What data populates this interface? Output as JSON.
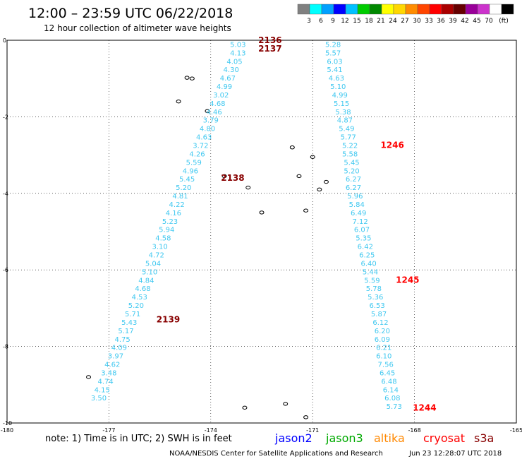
{
  "header": {
    "title": "12:00 – 23:59 UTC 06/22/2018",
    "subtitle": "12 hour collection of altimeter wave heights"
  },
  "legend": {
    "swatches": [
      "#808080",
      "#00ffff",
      "#00a0ff",
      "#0000ff",
      "#00c0ff",
      "#00cc00",
      "#008800",
      "#ffff00",
      "#ffd700",
      "#ff8c00",
      "#ff4500",
      "#ff0000",
      "#aa0000",
      "#660000",
      "#990099",
      "#cc33cc",
      "#ffffff",
      "#000000"
    ],
    "labels": [
      "3",
      "6",
      "9",
      "12",
      "15",
      "18",
      "21",
      "24",
      "27",
      "30",
      "33",
      "36",
      "39",
      "42",
      "45",
      "70",
      "(ft)"
    ]
  },
  "footer": {
    "note": "note: 1) Time is in UTC; 2) SWH is in feet",
    "credit": "NOAA/NESDIS Center for Satellite Applications and Research",
    "timestamp": "Jun 23 12:28:07 UTC 2018"
  },
  "satellites": [
    {
      "name": "jason2",
      "color": "#0000ff"
    },
    {
      "name": "jason3",
      "color": "#00aa00"
    },
    {
      "name": "altika",
      "color": "#ff8800"
    },
    {
      "name": "cryosat",
      "color": "#ff0000"
    },
    {
      "name": "s3a",
      "color": "#880000"
    }
  ],
  "chart_data": {
    "type": "scatter",
    "xlim": [
      -180,
      -165
    ],
    "ylim": [
      -10,
      0
    ],
    "x_ticks": [
      "-180",
      "-177",
      "-174",
      "-171",
      "-168",
      "-165"
    ],
    "y_ticks": [
      "0",
      "-2",
      "-4",
      "-6",
      "-8",
      "-10"
    ],
    "grid": true,
    "tracks": [
      {
        "satellite": "s3a",
        "value_color": "#40c8f0",
        "points": [
          {
            "x": -173.2,
            "y": -0.1,
            "v": "5.03"
          },
          {
            "x": -173.2,
            "y": -0.32,
            "v": "4.13"
          },
          {
            "x": -173.3,
            "y": -0.54,
            "v": "4.05"
          },
          {
            "x": -173.4,
            "y": -0.76,
            "v": "4.30"
          },
          {
            "x": -173.5,
            "y": -0.98,
            "v": "4.67"
          },
          {
            "x": -173.6,
            "y": -1.2,
            "v": "4.99"
          },
          {
            "x": -173.7,
            "y": -1.42,
            "v": "3.02"
          },
          {
            "x": -173.8,
            "y": -1.64,
            "v": "4.68"
          },
          {
            "x": -173.9,
            "y": -1.86,
            "v": "4.46"
          },
          {
            "x": -174.0,
            "y": -2.08,
            "v": "3.79"
          },
          {
            "x": -174.1,
            "y": -2.3,
            "v": "4.80"
          },
          {
            "x": -174.2,
            "y": -2.52,
            "v": "4.63"
          },
          {
            "x": -174.3,
            "y": -2.74,
            "v": "3.72"
          },
          {
            "x": -174.4,
            "y": -2.96,
            "v": "4.26"
          },
          {
            "x": -174.5,
            "y": -3.18,
            "v": "5.59"
          },
          {
            "x": -174.6,
            "y": -3.4,
            "v": "4.96"
          },
          {
            "x": -174.7,
            "y": -3.62,
            "v": "5.45"
          },
          {
            "x": -174.8,
            "y": -3.84,
            "v": "5.20"
          },
          {
            "x": -174.9,
            "y": -4.06,
            "v": "4.81"
          },
          {
            "x": -175.0,
            "y": -4.28,
            "v": "4.22"
          },
          {
            "x": -175.1,
            "y": -4.5,
            "v": "4.16"
          },
          {
            "x": -175.2,
            "y": -4.72,
            "v": "5.23"
          },
          {
            "x": -175.3,
            "y": -4.94,
            "v": "5.94"
          },
          {
            "x": -175.4,
            "y": -5.16,
            "v": "4.58"
          },
          {
            "x": -175.5,
            "y": -5.38,
            "v": "3.10"
          },
          {
            "x": -175.6,
            "y": -5.6,
            "v": "4.72"
          },
          {
            "x": -175.7,
            "y": -5.82,
            "v": "5.04"
          },
          {
            "x": -175.8,
            "y": -6.04,
            "v": "5.10"
          },
          {
            "x": -175.9,
            "y": -6.26,
            "v": "4.84"
          },
          {
            "x": -176.0,
            "y": -6.48,
            "v": "4.68"
          },
          {
            "x": -176.1,
            "y": -6.7,
            "v": "4.53"
          },
          {
            "x": -176.2,
            "y": -6.92,
            "v": "5.20"
          },
          {
            "x": -176.3,
            "y": -7.14,
            "v": "5.71"
          },
          {
            "x": -176.4,
            "y": -7.36,
            "v": "5.43"
          },
          {
            "x": -176.5,
            "y": -7.58,
            "v": "5.17"
          },
          {
            "x": -176.6,
            "y": -7.8,
            "v": "4.75"
          },
          {
            "x": -176.7,
            "y": -8.02,
            "v": "4.09"
          },
          {
            "x": -176.8,
            "y": -8.24,
            "v": "3.97"
          },
          {
            "x": -176.9,
            "y": -8.46,
            "v": "4.62"
          },
          {
            "x": -177.0,
            "y": -8.68,
            "v": "3.48"
          },
          {
            "x": -177.1,
            "y": -8.9,
            "v": "4.74"
          },
          {
            "x": -177.2,
            "y": -9.12,
            "v": "4.15"
          },
          {
            "x": -177.3,
            "y": -9.34,
            "v": "3.50"
          }
        ],
        "time_labels": [
          {
            "x": -172.6,
            "y": 0.0,
            "t": "2136"
          },
          {
            "x": -172.6,
            "y": -0.22,
            "t": "2137"
          },
          {
            "x": -173.7,
            "y": -3.6,
            "t": "2138"
          },
          {
            "x": -175.6,
            "y": -7.3,
            "t": "2139"
          }
        ]
      },
      {
        "satellite": "cryosat",
        "value_color": "#40c8f0",
        "points": [
          {
            "x": -170.4,
            "y": -0.1,
            "v": "5.28"
          },
          {
            "x": -170.4,
            "y": -0.32,
            "v": "5.57"
          },
          {
            "x": -170.35,
            "y": -0.54,
            "v": "6.03"
          },
          {
            "x": -170.35,
            "y": -0.76,
            "v": "5.41"
          },
          {
            "x": -170.3,
            "y": -0.98,
            "v": "4.63"
          },
          {
            "x": -170.25,
            "y": -1.2,
            "v": "5.10"
          },
          {
            "x": -170.2,
            "y": -1.42,
            "v": "4.99"
          },
          {
            "x": -170.15,
            "y": -1.64,
            "v": "5.15"
          },
          {
            "x": -170.1,
            "y": -1.86,
            "v": "5.38"
          },
          {
            "x": -170.05,
            "y": -2.08,
            "v": "4.87"
          },
          {
            "x": -170.0,
            "y": -2.3,
            "v": "5.49"
          },
          {
            "x": -169.95,
            "y": -2.52,
            "v": "5.77"
          },
          {
            "x": -169.9,
            "y": -2.74,
            "v": "5.22"
          },
          {
            "x": -169.9,
            "y": -2.96,
            "v": "5.58"
          },
          {
            "x": -169.85,
            "y": -3.18,
            "v": "5.45"
          },
          {
            "x": -169.85,
            "y": -3.4,
            "v": "5.20"
          },
          {
            "x": -169.8,
            "y": -3.62,
            "v": "6.27"
          },
          {
            "x": -169.8,
            "y": -3.84,
            "v": "6.27"
          },
          {
            "x": -169.75,
            "y": -4.06,
            "v": "5.96"
          },
          {
            "x": -169.7,
            "y": -4.28,
            "v": "5.84"
          },
          {
            "x": -169.65,
            "y": -4.5,
            "v": "6.49"
          },
          {
            "x": -169.6,
            "y": -4.72,
            "v": "7.12"
          },
          {
            "x": -169.55,
            "y": -4.94,
            "v": "6.07"
          },
          {
            "x": -169.5,
            "y": -5.16,
            "v": "5.35"
          },
          {
            "x": -169.45,
            "y": -5.38,
            "v": "6.42"
          },
          {
            "x": -169.4,
            "y": -5.6,
            "v": "6.25"
          },
          {
            "x": -169.35,
            "y": -5.82,
            "v": "6.40"
          },
          {
            "x": -169.3,
            "y": -6.04,
            "v": "5.44"
          },
          {
            "x": -169.25,
            "y": -6.26,
            "v": "5.59"
          },
          {
            "x": -169.2,
            "y": -6.48,
            "v": "5.78"
          },
          {
            "x": -169.15,
            "y": -6.7,
            "v": "5.36"
          },
          {
            "x": -169.1,
            "y": -6.92,
            "v": "6.53"
          },
          {
            "x": -169.05,
            "y": -7.14,
            "v": "5.87"
          },
          {
            "x": -169.0,
            "y": -7.36,
            "v": "6.12"
          },
          {
            "x": -168.95,
            "y": -7.58,
            "v": "6.20"
          },
          {
            "x": -168.95,
            "y": -7.8,
            "v": "6.09"
          },
          {
            "x": -168.9,
            "y": -8.02,
            "v": "6.21"
          },
          {
            "x": -168.9,
            "y": -8.24,
            "v": "6.10"
          },
          {
            "x": -168.85,
            "y": -8.46,
            "v": "7.56"
          },
          {
            "x": -168.8,
            "y": -8.68,
            "v": "6.45"
          },
          {
            "x": -168.75,
            "y": -8.9,
            "v": "6.48"
          },
          {
            "x": -168.7,
            "y": -9.12,
            "v": "6.14"
          },
          {
            "x": -168.65,
            "y": -9.34,
            "v": "6.08"
          },
          {
            "x": -168.6,
            "y": -9.56,
            "v": "5.73"
          }
        ],
        "time_labels": [
          {
            "x": -169.0,
            "y": -2.74,
            "t": "1246"
          },
          {
            "x": -168.55,
            "y": -6.26,
            "t": "1245"
          },
          {
            "x": -168.05,
            "y": -9.6,
            "t": "1244"
          }
        ]
      }
    ],
    "islands": [
      {
        "x": -174.7,
        "y": -0.98
      },
      {
        "x": -174.55,
        "y": -1.0
      },
      {
        "x": -174.95,
        "y": -1.6
      },
      {
        "x": -174.1,
        "y": -1.85
      },
      {
        "x": -173.6,
        "y": -3.55
      },
      {
        "x": -172.9,
        "y": -3.85
      },
      {
        "x": -171.6,
        "y": -2.8
      },
      {
        "x": -171.0,
        "y": -3.05
      },
      {
        "x": -171.4,
        "y": -3.55
      },
      {
        "x": -170.6,
        "y": -3.7
      },
      {
        "x": -170.8,
        "y": -3.9
      },
      {
        "x": -172.5,
        "y": -4.5
      },
      {
        "x": -171.2,
        "y": -4.45
      },
      {
        "x": -173.0,
        "y": -9.6
      },
      {
        "x": -171.2,
        "y": -9.85
      },
      {
        "x": -171.8,
        "y": -9.5
      },
      {
        "x": -177.6,
        "y": -8.8
      }
    ]
  }
}
